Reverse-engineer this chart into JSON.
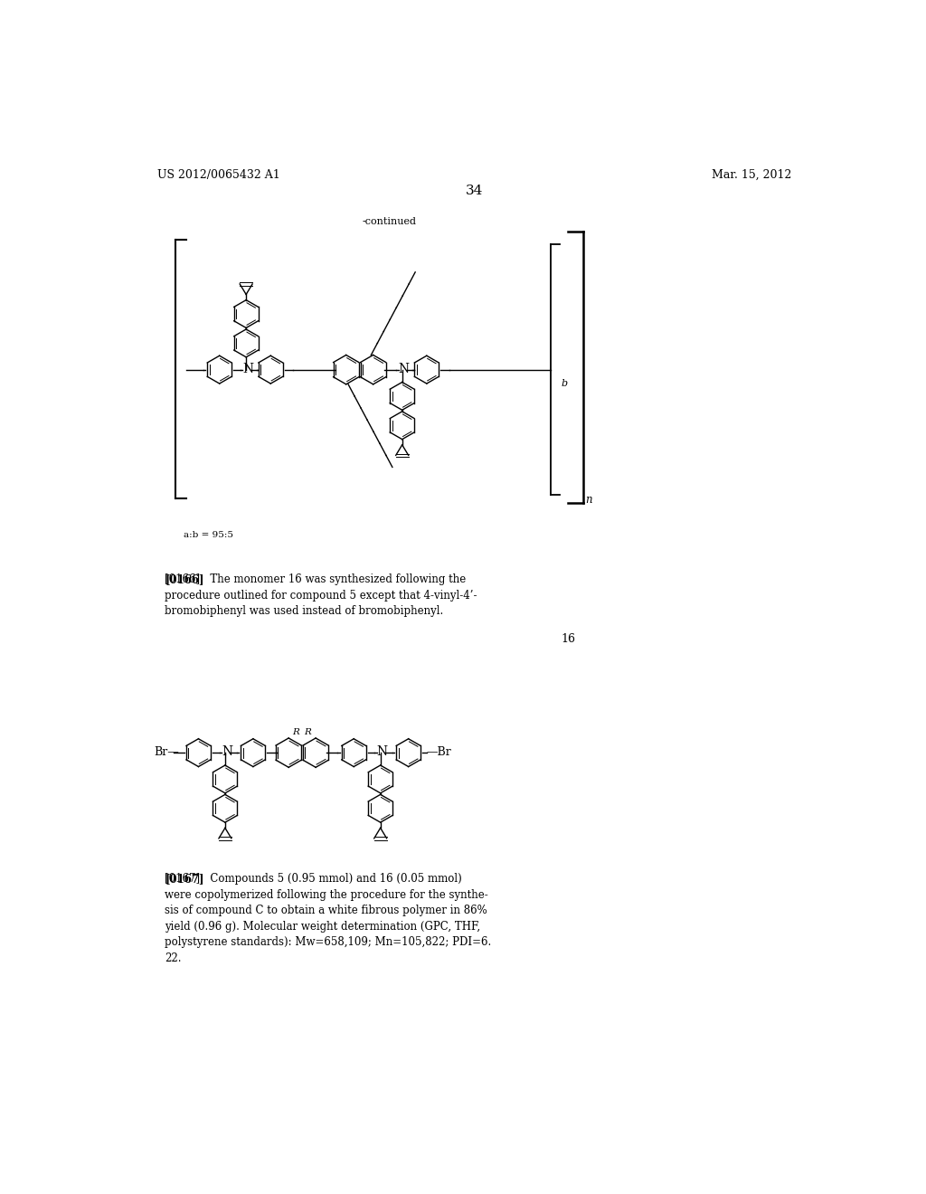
{
  "page_header_left": "US 2012/0065432 A1",
  "page_header_right": "Mar. 15, 2012",
  "page_number": "34",
  "continued_label": "-continued",
  "ratio_label": "a:b = 95:5",
  "compound_label": "16",
  "n_label": "n",
  "b_label": "b",
  "paragraph_0166_bold": "[0166]",
  "paragraph_0166_text": "The monomer 16 was synthesized following the procedure outlined for compound 5 except that 4-vinyl-4-bromobiphenyl was used instead of bromobiphenyl.",
  "paragraph_0167_bold": "[0167]",
  "paragraph_0167_text": "Compounds 5 (0.95 mmol) and 16 (0.05 mmol) were copolymerized following the procedure for the synthesis of compound C to obtain a white fibrous polymer in 86% yield (0.96 g). Molecular weight determination (GPC, THF, polystyrene standards): Mw=658,109; Mn=105,822; PDI=6.22.",
  "background_color": "#ffffff",
  "text_color": "#000000",
  "font_size_header": 9,
  "font_size_body": 8,
  "font_size_page_num": 11
}
